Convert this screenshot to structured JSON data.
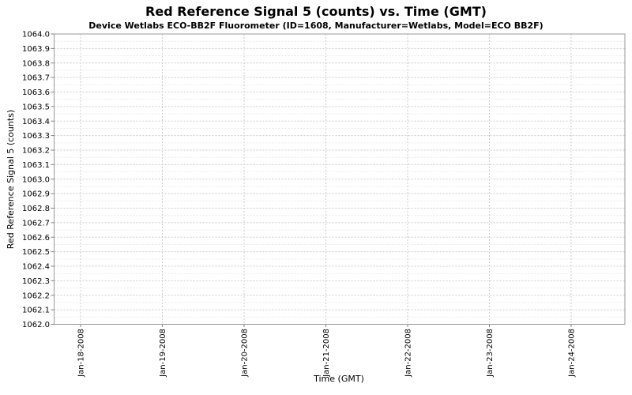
{
  "chart_data": {
    "type": "line",
    "title": "Red Reference Signal 5 (counts) vs. Time (GMT)",
    "subtitle": "Device Wetlabs ECO-BB2F Fluorometer (ID=1608, Manufacturer=Wetlabs, Model=ECO BB2F)",
    "xlabel": "Time (GMT)",
    "ylabel": "Red Reference Signal 5 (counts)",
    "x_ticks": [
      "Jan-18-2008",
      "Jan-19-2008",
      "Jan-20-2008",
      "Jan-21-2008",
      "Jan-22-2008",
      "Jan-23-2008",
      "Jan-24-2008"
    ],
    "y_ticks": [
      "1064.0",
      "1063.9",
      "1063.8",
      "1063.7",
      "1063.6",
      "1063.5",
      "1063.4",
      "1063.3",
      "1063.2",
      "1063.1",
      "1063.0",
      "1062.9",
      "1062.8",
      "1062.7",
      "1062.6",
      "1062.5",
      "1062.4",
      "1062.3",
      "1062.2",
      "1062.1",
      "1062.0"
    ],
    "ylim": [
      1062.0,
      1064.0
    ],
    "y_major_step": 0.1,
    "y_minor_step": 0.05,
    "series": [],
    "grid": {
      "horizontal_major": true,
      "horizontal_minor": true,
      "vertical_major": true,
      "style": "dashed"
    },
    "legend": "none",
    "colors": {
      "background": "#ffffff",
      "plot_background": "#ffffff",
      "plot_border": "#999999",
      "grid_major": "#cccccc",
      "grid_minor": "#e9e9e9",
      "tick_mark": "#808080",
      "text": "#000000"
    }
  }
}
